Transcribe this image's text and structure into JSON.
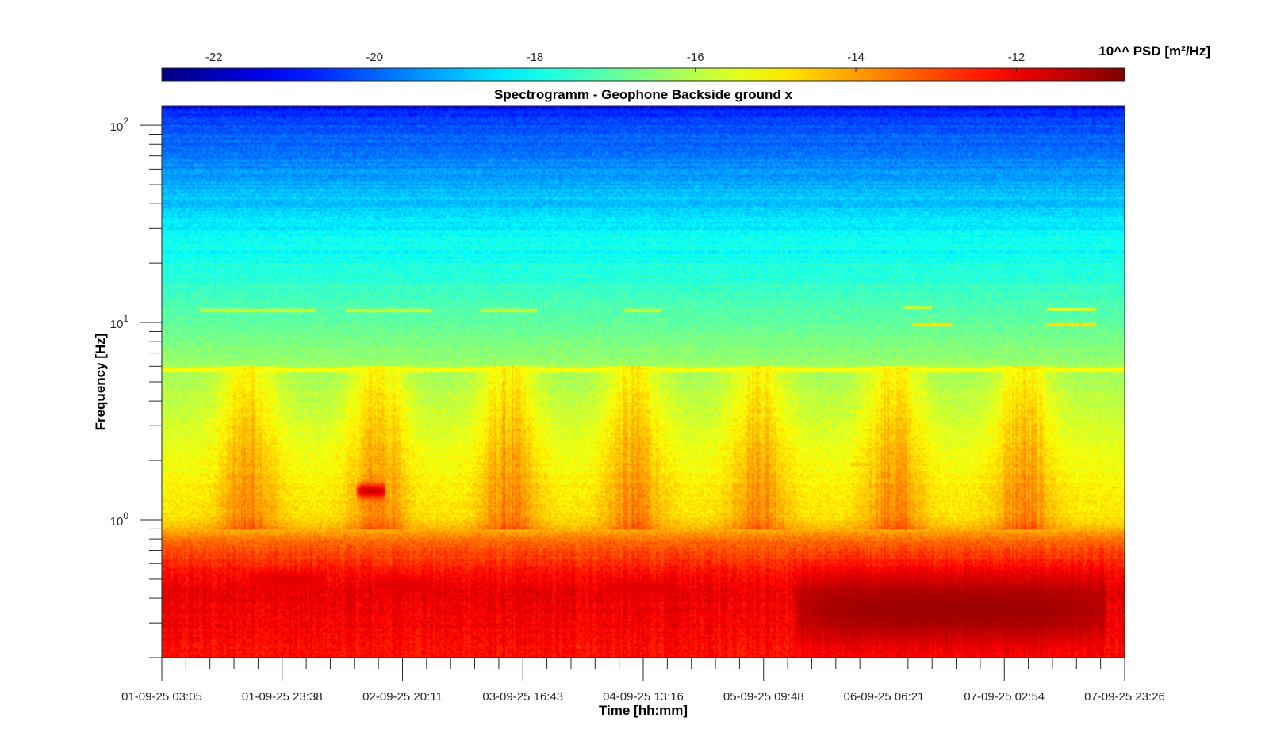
{
  "chart_data": {
    "type": "heatmap",
    "title": "Spectrogramm - Geophone Backside ground x",
    "xlabel": "Time [hh:mm]",
    "ylabel": "Frequency [Hz]",
    "yscale": "log",
    "ylim": [
      0.2,
      125
    ],
    "x_tick_labels": [
      "01-09-25 03:05",
      "01-09-25 23:38",
      "02-09-25 20:11",
      "03-09-25 16:43",
      "04-09-25 13:16",
      "05-09-25 09:48",
      "06-09-25 06:21",
      "07-09-25 02:54",
      "07-09-25 23:26"
    ],
    "y_ticks": [
      {
        "value": 1,
        "base": "10",
        "exp": "0"
      },
      {
        "value": 10,
        "base": "10",
        "exp": "1"
      },
      {
        "value": 100,
        "base": "10",
        "exp": "2"
      }
    ],
    "colorbar": {
      "label": "10^^ PSD [m²/Hz]",
      "range": [
        -22.65,
        -10.65
      ],
      "ticks": [
        "-22",
        "-20",
        "-18",
        "-16",
        "-14",
        "-12"
      ],
      "tick_values": [
        -22,
        -20,
        -18,
        -16,
        -14,
        -12
      ],
      "colormap": "jet",
      "location": "top"
    },
    "spectral_profile": [
      {
        "freq_hz": 0.2,
        "log10_psd": -12.3
      },
      {
        "freq_hz": 0.45,
        "log10_psd": -11.9
      },
      {
        "freq_hz": 0.75,
        "log10_psd": -13.2
      },
      {
        "freq_hz": 1.0,
        "log10_psd": -14.8
      },
      {
        "freq_hz": 2.0,
        "log10_psd": -15.3
      },
      {
        "freq_hz": 5.7,
        "log10_psd": -16.2
      },
      {
        "freq_hz": 10.0,
        "log10_psd": -17.0
      },
      {
        "freq_hz": 30.0,
        "log10_psd": -18.3
      },
      {
        "freq_hz": 100.0,
        "log10_psd": -20.3
      },
      {
        "freq_hz": 125.0,
        "log10_psd": -21.0
      }
    ],
    "features": [
      {
        "kind": "line",
        "freq_hz": 5.7,
        "log10_psd": -15.2,
        "t_start": 0,
        "t_end": 1
      },
      {
        "kind": "line",
        "freq_hz": 11.6,
        "log10_psd": -15.8,
        "t_start": 0.04,
        "t_end": 0.16
      },
      {
        "kind": "line",
        "freq_hz": 11.6,
        "log10_psd": -15.8,
        "t_start": 0.19,
        "t_end": 0.28
      },
      {
        "kind": "line",
        "freq_hz": 11.6,
        "log10_psd": -15.8,
        "t_start": 0.33,
        "t_end": 0.39
      },
      {
        "kind": "line",
        "freq_hz": 11.4,
        "log10_psd": -15.8,
        "t_start": 0.48,
        "t_end": 0.52
      },
      {
        "kind": "line",
        "freq_hz": 12.0,
        "log10_psd": -15.6,
        "t_start": 0.77,
        "t_end": 0.8
      },
      {
        "kind": "line",
        "freq_hz": 9.8,
        "log10_psd": -14.8,
        "t_start": 0.78,
        "t_end": 0.82
      },
      {
        "kind": "line",
        "freq_hz": 11.8,
        "log10_psd": -15.6,
        "t_start": 0.92,
        "t_end": 0.97
      },
      {
        "kind": "line",
        "freq_hz": 9.8,
        "log10_psd": -14.8,
        "t_start": 0.92,
        "t_end": 0.97
      },
      {
        "kind": "line",
        "freq_hz": 1.9,
        "log10_psd": -14.5,
        "t_start": 0.716,
        "t_end": 0.738
      },
      {
        "kind": "blob",
        "freq_hz": 1.4,
        "log10_psd": -11.5,
        "t_start": 0.203,
        "t_end": 0.232
      },
      {
        "kind": "blob",
        "freq_hz": 0.5,
        "log10_psd": -11.8,
        "t_start": 0.09,
        "t_end": 0.17
      },
      {
        "kind": "blob",
        "freq_hz": 0.47,
        "log10_psd": -11.8,
        "t_start": 0.22,
        "t_end": 0.28
      },
      {
        "kind": "blob",
        "freq_hz": 0.45,
        "log10_psd": -11.8,
        "t_start": 0.46,
        "t_end": 0.53
      },
      {
        "kind": "blob",
        "freq_hz": 0.35,
        "log10_psd": -11.0,
        "t_start": 0.66,
        "t_end": 0.98
      }
    ]
  }
}
